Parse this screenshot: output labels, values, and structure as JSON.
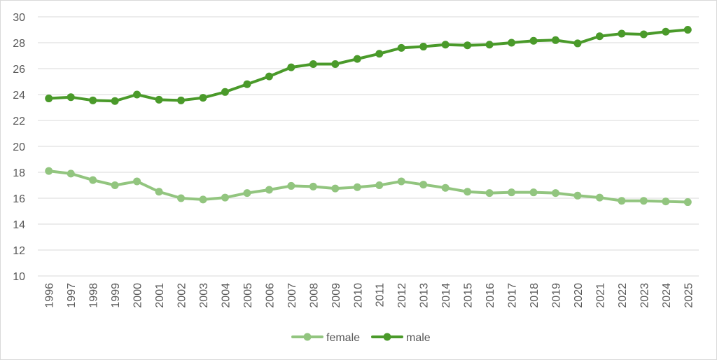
{
  "chart_data": {
    "type": "line",
    "title": "",
    "xlabel": "",
    "ylabel": "",
    "ylim": [
      10,
      30
    ],
    "yticks": [
      10,
      12,
      14,
      16,
      18,
      20,
      22,
      24,
      26,
      28,
      30
    ],
    "grid": true,
    "legend_position": "bottom",
    "categories": [
      "1996",
      "1997",
      "1998",
      "1999",
      "2000",
      "2001",
      "2002",
      "2003",
      "2004",
      "2005",
      "2006",
      "2007",
      "2008",
      "2009",
      "2010",
      "2011",
      "2012",
      "2013",
      "2014",
      "2015",
      "2016",
      "2017",
      "2018",
      "2019",
      "2020",
      "2021",
      "2022",
      "2023",
      "2024",
      "2025"
    ],
    "series": [
      {
        "name": "female",
        "color": "#92c57f",
        "values": [
          18.1,
          17.9,
          17.4,
          17.0,
          17.3,
          16.5,
          16.0,
          15.9,
          16.05,
          16.4,
          16.65,
          16.95,
          16.9,
          16.75,
          16.85,
          17.0,
          17.3,
          17.05,
          16.8,
          16.5,
          16.4,
          16.45,
          16.45,
          16.4,
          16.2,
          16.05,
          15.8,
          15.8,
          15.75,
          15.7
        ]
      },
      {
        "name": "male",
        "color": "#4a9a2a",
        "values": [
          23.7,
          23.8,
          23.55,
          23.5,
          24.0,
          23.6,
          23.55,
          23.75,
          24.2,
          24.8,
          25.4,
          26.1,
          26.35,
          26.35,
          26.75,
          27.15,
          27.6,
          27.7,
          27.85,
          27.8,
          27.85,
          28.0,
          28.15,
          28.2,
          27.95,
          28.5,
          28.7,
          28.65,
          28.85,
          29.0
        ]
      }
    ]
  }
}
